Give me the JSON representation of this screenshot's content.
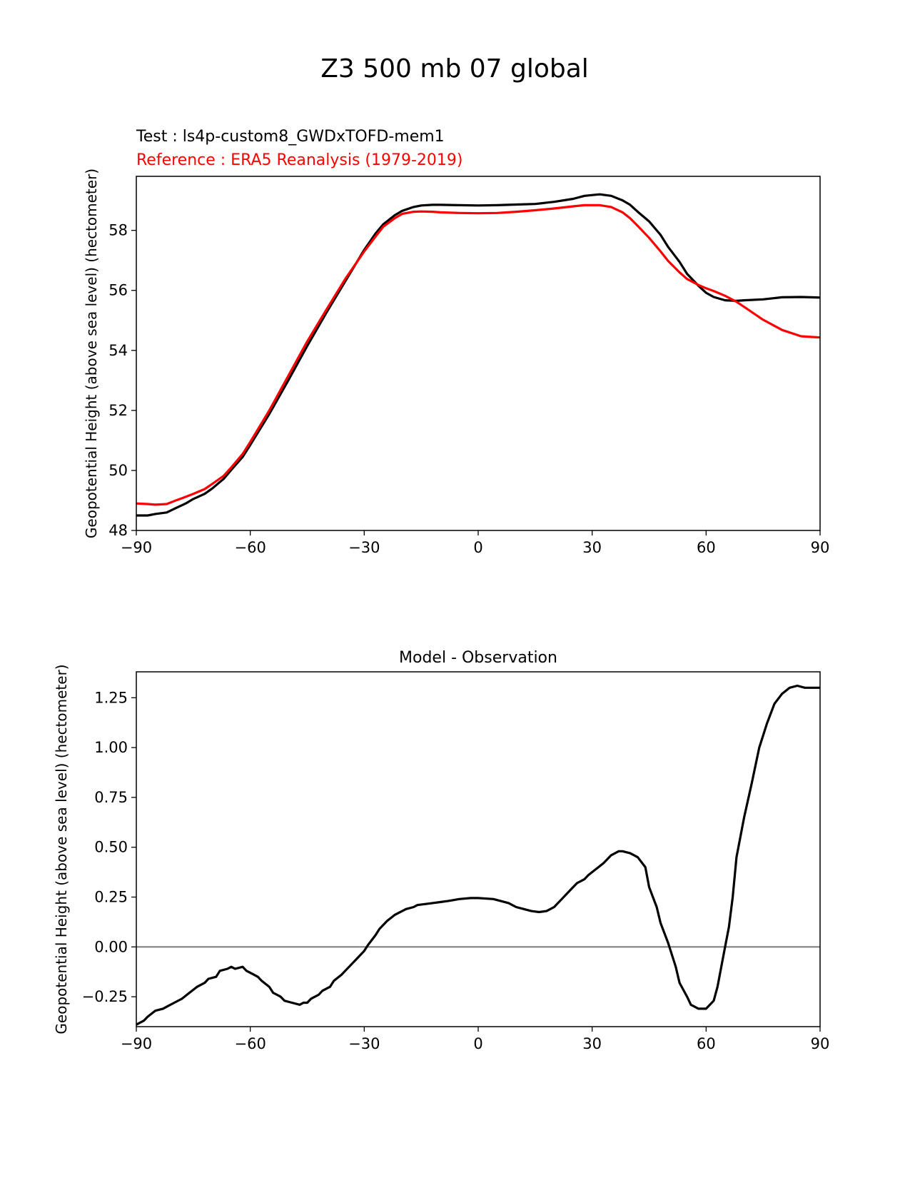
{
  "title": "Z3 500 mb 07 global",
  "chart_data": [
    {
      "type": "line",
      "test_label": "Test : ls4p-custom8_GWDxTOFD-mem1",
      "reference_label": "Reference : ERA5 Reanalysis (1979-2019)",
      "xlabel": "",
      "ylabel": "Geopotential Height (above sea level) (hectometer)",
      "xlim": [
        -90,
        90
      ],
      "ylim": [
        48,
        59.8
      ],
      "xticks": [
        -90,
        -60,
        -30,
        0,
        30,
        60,
        90
      ],
      "xtick_labels": [
        "−90",
        "−60",
        "−30",
        "0",
        "30",
        "60",
        "90"
      ],
      "yticks": [
        48,
        50,
        52,
        54,
        56,
        58
      ],
      "ytick_labels": [
        "48",
        "50",
        "52",
        "54",
        "56",
        "58"
      ],
      "series": [
        {
          "name": "Test",
          "color": "#000000",
          "x": [
            -90,
            -87,
            -85,
            -82,
            -80,
            -77,
            -75,
            -72,
            -70,
            -67,
            -65,
            -62,
            -60,
            -55,
            -50,
            -45,
            -40,
            -35,
            -30,
            -27,
            -25,
            -22,
            -20,
            -17,
            -15,
            -12,
            -10,
            -5,
            0,
            5,
            10,
            15,
            20,
            25,
            28,
            32,
            35,
            38,
            40,
            42,
            45,
            48,
            50,
            53,
            55,
            58,
            60,
            62,
            65,
            68,
            70,
            75,
            80,
            85,
            90
          ],
          "values": [
            48.5,
            48.5,
            48.55,
            48.6,
            48.72,
            48.9,
            49.05,
            49.22,
            49.4,
            49.72,
            50.02,
            50.45,
            50.85,
            51.88,
            53.0,
            54.15,
            55.25,
            56.3,
            57.35,
            57.9,
            58.2,
            58.5,
            58.65,
            58.78,
            58.83,
            58.85,
            58.85,
            58.84,
            58.83,
            58.84,
            58.86,
            58.88,
            58.95,
            59.05,
            59.15,
            59.2,
            59.15,
            59.0,
            58.85,
            58.62,
            58.3,
            57.85,
            57.45,
            56.95,
            56.55,
            56.15,
            55.92,
            55.78,
            55.67,
            55.65,
            55.67,
            55.7,
            55.77,
            55.78,
            55.76
          ]
        },
        {
          "name": "Reference",
          "color": "#ff0000",
          "x": [
            -90,
            -87,
            -85,
            -82,
            -80,
            -77,
            -75,
            -72,
            -70,
            -67,
            -65,
            -62,
            -60,
            -55,
            -50,
            -45,
            -40,
            -35,
            -30,
            -27,
            -25,
            -22,
            -20,
            -17,
            -15,
            -12,
            -10,
            -5,
            0,
            5,
            10,
            15,
            20,
            25,
            28,
            32,
            35,
            38,
            40,
            42,
            45,
            48,
            50,
            53,
            55,
            58,
            60,
            62,
            65,
            68,
            70,
            75,
            80,
            85,
            90
          ],
          "values": [
            48.9,
            48.88,
            48.86,
            48.88,
            48.98,
            49.12,
            49.22,
            49.38,
            49.55,
            49.82,
            50.1,
            50.55,
            50.95,
            52.0,
            53.15,
            54.3,
            55.35,
            56.38,
            57.3,
            57.8,
            58.12,
            58.4,
            58.55,
            58.62,
            58.63,
            58.62,
            58.6,
            58.58,
            58.57,
            58.58,
            58.62,
            58.67,
            58.73,
            58.8,
            58.84,
            58.84,
            58.78,
            58.6,
            58.4,
            58.15,
            57.75,
            57.3,
            56.98,
            56.6,
            56.38,
            56.18,
            56.07,
            55.98,
            55.82,
            55.62,
            55.45,
            55.02,
            54.68,
            54.47,
            54.43
          ]
        }
      ]
    },
    {
      "type": "line",
      "title": "Model - Observation",
      "xlabel": "",
      "ylabel": "Geopotential Height (above sea level) (hectometer)",
      "xlim": [
        -90,
        90
      ],
      "ylim": [
        -0.4,
        1.38
      ],
      "xticks": [
        -90,
        -60,
        -30,
        0,
        30,
        60,
        90
      ],
      "xtick_labels": [
        "−90",
        "−60",
        "−30",
        "0",
        "30",
        "60",
        "90"
      ],
      "yticks": [
        -0.25,
        0.0,
        0.25,
        0.5,
        0.75,
        1.0,
        1.25
      ],
      "ytick_labels": [
        "−0.25",
        "0.00",
        "0.25",
        "0.50",
        "0.75",
        "1.00",
        "1.25"
      ],
      "zero_line_color": "#808080",
      "series": [
        {
          "name": "Model - Observation",
          "color": "#000000",
          "x": [
            -90,
            -88,
            -87,
            -85,
            -83,
            -82,
            -80,
            -78,
            -76,
            -74,
            -72,
            -71,
            -69,
            -68,
            -66,
            -65,
            -64,
            -62,
            -61,
            -60,
            -58,
            -57,
            -55,
            -54,
            -52,
            -51,
            -49,
            -47,
            -46,
            -45,
            -44,
            -42,
            -41,
            -39,
            -38,
            -36,
            -35,
            -33,
            -32,
            -30,
            -29,
            -27,
            -26,
            -24,
            -22,
            -21,
            -19,
            -17,
            -16,
            -14,
            -12,
            -10,
            -8,
            -5,
            -2,
            0,
            4,
            8,
            10,
            12,
            14,
            16,
            18,
            20,
            22,
            24,
            26,
            28,
            29,
            31,
            33,
            35,
            37,
            38,
            40,
            42,
            44,
            45,
            47,
            48,
            50,
            52,
            53,
            55,
            56,
            58,
            60,
            62,
            63,
            64,
            65,
            66,
            67,
            68,
            70,
            72,
            74,
            76,
            78,
            80,
            82,
            84,
            86,
            88,
            90
          ],
          "values": [
            -0.39,
            -0.37,
            -0.35,
            -0.32,
            -0.31,
            -0.3,
            -0.28,
            -0.26,
            -0.23,
            -0.2,
            -0.18,
            -0.16,
            -0.15,
            -0.12,
            -0.11,
            -0.1,
            -0.11,
            -0.1,
            -0.12,
            -0.13,
            -0.15,
            -0.17,
            -0.2,
            -0.23,
            -0.25,
            -0.27,
            -0.28,
            -0.29,
            -0.28,
            -0.28,
            -0.26,
            -0.24,
            -0.22,
            -0.2,
            -0.17,
            -0.14,
            -0.12,
            -0.08,
            -0.06,
            -0.02,
            0.01,
            0.06,
            0.09,
            0.13,
            0.16,
            0.17,
            0.19,
            0.2,
            0.21,
            0.215,
            0.22,
            0.225,
            0.23,
            0.24,
            0.245,
            0.245,
            0.24,
            0.22,
            0.2,
            0.19,
            0.18,
            0.175,
            0.18,
            0.2,
            0.24,
            0.28,
            0.32,
            0.34,
            0.36,
            0.39,
            0.42,
            0.46,
            0.48,
            0.48,
            0.47,
            0.45,
            0.4,
            0.3,
            0.2,
            0.12,
            0.02,
            -0.1,
            -0.18,
            -0.25,
            -0.29,
            -0.31,
            -0.31,
            -0.27,
            -0.2,
            -0.1,
            0.0,
            0.1,
            0.25,
            0.45,
            0.65,
            0.82,
            1.0,
            1.12,
            1.22,
            1.27,
            1.3,
            1.31,
            1.3,
            1.3,
            1.3
          ]
        }
      ]
    }
  ]
}
